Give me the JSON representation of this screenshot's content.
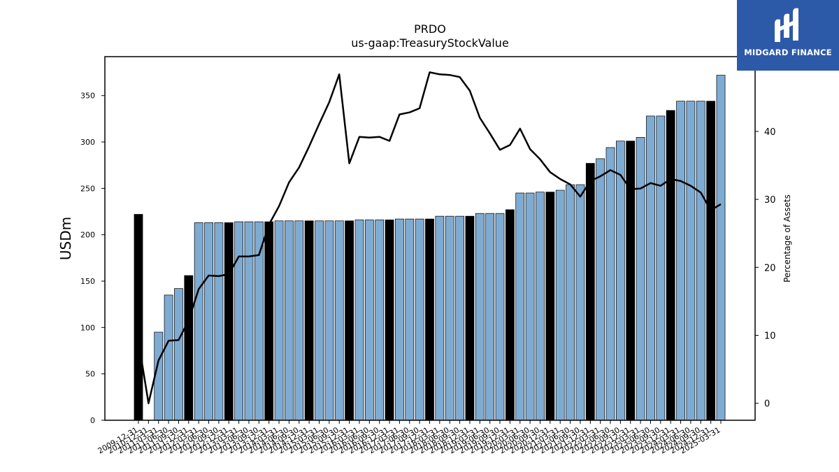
{
  "chart_data": {
    "type": "bar",
    "title": "PRDO",
    "subtitle": "us-gaap:TreasuryStockValue",
    "ylabel": "USDm",
    "y2label": "Percentage of Assets",
    "ylim": [
      0,
      392
    ],
    "y2lim": [
      -2.5,
      51
    ],
    "yticks": [
      0,
      50,
      100,
      150,
      200,
      250,
      300,
      350
    ],
    "y2ticks": [
      0,
      10,
      20,
      30,
      40
    ],
    "grid": false,
    "colors": {
      "bar": "#7eabd2",
      "bar_highlight": "#000000",
      "line": "#000000",
      "bar_edge": "#000000"
    },
    "categories": [
      "2009-12-31",
      "2010-12-31",
      "2011-03-31",
      "2011-06-30",
      "2011-09-30",
      "2011-12-31",
      "2012-03-31",
      "2012-06-30",
      "2012-09-30",
      "2012-12-31",
      "2013-03-31",
      "2013-06-30",
      "2013-09-30",
      "2013-12-31",
      "2014-03-31",
      "2014-06-30",
      "2014-09-30",
      "2014-12-31",
      "2015-03-31",
      "2015-06-30",
      "2015-09-30",
      "2015-12-31",
      "2016-03-31",
      "2016-06-30",
      "2016-09-30",
      "2016-12-31",
      "2017-03-31",
      "2017-06-30",
      "2017-09-30",
      "2017-12-31",
      "2018-03-31",
      "2018-06-30",
      "2018-09-30",
      "2018-12-31",
      "2019-03-31",
      "2019-06-30",
      "2019-09-30",
      "2019-12-31",
      "2020-03-31",
      "2020-06-30",
      "2020-09-30",
      "2020-12-31",
      "2021-03-31",
      "2021-06-30",
      "2021-09-30",
      "2021-12-31",
      "2022-03-31",
      "2022-06-30",
      "2022-09-30",
      "2022-12-31",
      "2023-03-31",
      "2023-06-30",
      "2023-09-30",
      "2023-12-31",
      "2024-03-31",
      "2024-06-30",
      "2024-09-30",
      "2024-12-31",
      "2025-03-31"
    ],
    "series": [
      {
        "type": "bar",
        "values": [
          222,
          null,
          95,
          135,
          142,
          156,
          213,
          213,
          213,
          213,
          214,
          214,
          214,
          214,
          215,
          215,
          215,
          215,
          215,
          215,
          215,
          215,
          216,
          216,
          216,
          216,
          217,
          217,
          217,
          217,
          220,
          220,
          220,
          220,
          223,
          223,
          223,
          227,
          245,
          245,
          246,
          246,
          248,
          254,
          254,
          277,
          282,
          294,
          301,
          301,
          305,
          328,
          328,
          334,
          344,
          344,
          344,
          344,
          372
        ],
        "highlight": [
          true,
          false,
          false,
          false,
          false,
          true,
          false,
          false,
          false,
          true,
          false,
          false,
          false,
          true,
          false,
          false,
          false,
          true,
          false,
          false,
          false,
          true,
          false,
          false,
          false,
          true,
          false,
          false,
          false,
          true,
          false,
          false,
          false,
          true,
          false,
          false,
          false,
          true,
          false,
          false,
          false,
          true,
          false,
          false,
          false,
          true,
          false,
          false,
          false,
          true,
          false,
          false,
          false,
          true,
          false,
          false,
          false,
          true,
          false
        ]
      },
      {
        "type": "line",
        "axis": "right",
        "values": [
          9.2,
          0,
          6.3,
          9.2,
          9.3,
          12.2,
          16.8,
          18.8,
          18.7,
          19.0,
          21.6,
          21.6,
          21.8,
          26.3,
          29.0,
          32.5,
          34.7,
          37.8,
          41.1,
          44.3,
          48.4,
          35.3,
          39.2,
          39.1,
          39.2,
          38.6,
          42.5,
          42.8,
          43.4,
          48.7,
          48.4,
          48.3,
          48.0,
          46.0,
          42.0,
          39.7,
          37.3,
          38.0,
          40.4,
          37.4,
          35.9,
          34.0,
          33.0,
          32.2,
          30.4,
          32.7,
          33.4,
          34.3,
          33.6,
          31.5,
          31.6,
          32.4,
          32.0,
          33.0,
          32.7,
          32.0,
          31.0,
          28.4,
          29.3
        ]
      }
    ]
  },
  "branding": {
    "logo_text": "MIDGARD FINANCE"
  }
}
